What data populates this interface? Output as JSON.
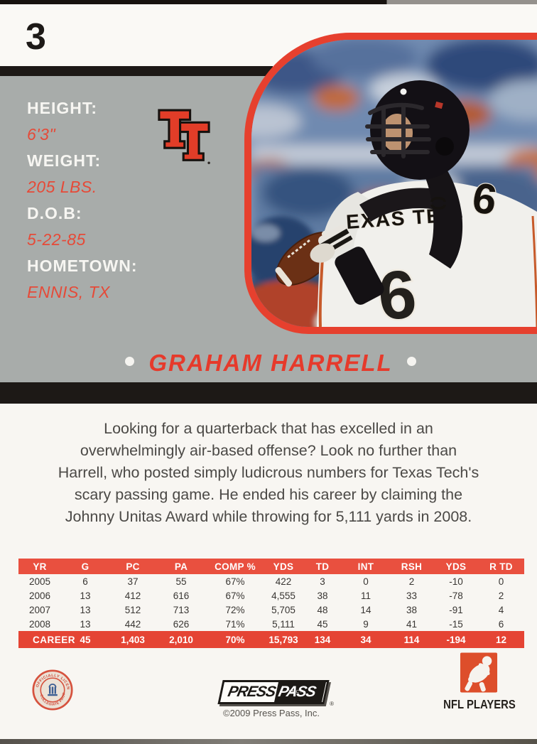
{
  "card": {
    "number": "3",
    "player_name": "GRAHAM HARRELL",
    "info": [
      {
        "label": "HEIGHT:",
        "value": "6'3\""
      },
      {
        "label": "WEIGHT:",
        "value": "205 LBS."
      },
      {
        "label": "D.O.B:",
        "value": "5-22-85"
      },
      {
        "label": "HOMETOWN:",
        "value": "ENNIS, TX"
      }
    ],
    "photo": {
      "jersey_number": "6",
      "jersey_text": "EXAS TE"
    },
    "description": "Looking for a quarterback that has excelled in an overwhelmingly air-based offense? Look no further than Harrell, who posted simply ludicrous numbers for Texas Tech's scary passing game. He ended his career by claiming the Johnny Unitas Award while throwing for 5,111 yards in 2008.",
    "stats": {
      "headers": [
        "YR",
        "G",
        "PC",
        "PA",
        "COMP %",
        "YDS",
        "TD",
        "INT",
        "RSH",
        "YDS",
        "R TD"
      ],
      "rows": [
        [
          "2005",
          "6",
          "37",
          "55",
          "67%",
          "422",
          "3",
          "0",
          "2",
          "-10",
          "0"
        ],
        [
          "2006",
          "13",
          "412",
          "616",
          "67%",
          "4,555",
          "38",
          "11",
          "33",
          "-78",
          "2"
        ],
        [
          "2007",
          "13",
          "512",
          "713",
          "72%",
          "5,705",
          "48",
          "14",
          "38",
          "-91",
          "4"
        ],
        [
          "2008",
          "13",
          "442",
          "626",
          "71%",
          "5,111",
          "45",
          "9",
          "41",
          "-15",
          "6"
        ]
      ],
      "career_row": [
        "CAREER",
        "45",
        "1,403",
        "2,010",
        "70%",
        "15,793",
        "134",
        "34",
        "114",
        "-194",
        "12"
      ]
    },
    "footer": {
      "seal_text_top": "OFFICIALLY LICENSED",
      "seal_text_bottom": "COLLEGIATE PRODUCTS",
      "presspass": {
        "part1": "PRESS",
        "part2": "PASS",
        "sub": "INC.",
        "reg": "®"
      },
      "copyright": "©2009 Press Pass, Inc.",
      "nfl_players_label": "NFL PLAYERS"
    },
    "colors": {
      "accent_red": "#e6402e",
      "panel_gray": "#a8acaa",
      "stripe_black": "#1d1916",
      "table_header_red": "#e9503f",
      "career_red": "#e54434"
    }
  }
}
